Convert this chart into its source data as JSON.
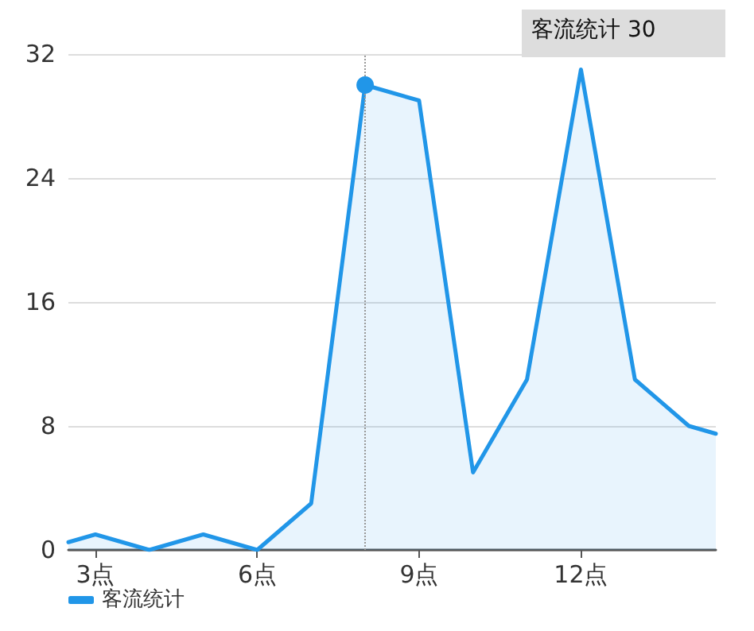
{
  "chart_data": {
    "type": "area",
    "x": [
      2.5,
      3,
      4,
      5,
      6,
      7,
      8,
      9,
      10,
      11,
      12,
      13,
      14,
      14.5
    ],
    "series": [
      {
        "name": "客流统计",
        "color": "#2196e8",
        "values": [
          0.5,
          1,
          0,
          1,
          0,
          3,
          30,
          29,
          5,
          11,
          31,
          11,
          8,
          7.5
        ]
      }
    ],
    "xlim": [
      2.5,
      14.5
    ],
    "xticks": [
      {
        "value": 3,
        "label": "3点"
      },
      {
        "value": 6,
        "label": "6点"
      },
      {
        "value": 9,
        "label": "9点"
      },
      {
        "value": 12,
        "label": "12点"
      }
    ],
    "ylim": [
      0,
      32
    ],
    "yticks": [
      0,
      8,
      16,
      24,
      32
    ],
    "grid": "y",
    "legend": "bottom left",
    "marker": "none",
    "line_style": "solid",
    "ref_lines": [
      {
        "axis": "x",
        "value": 8,
        "label": null,
        "color": "#999999",
        "line_style": "dotted"
      }
    ],
    "annotations": [
      "客流统计 30"
    ]
  }
}
